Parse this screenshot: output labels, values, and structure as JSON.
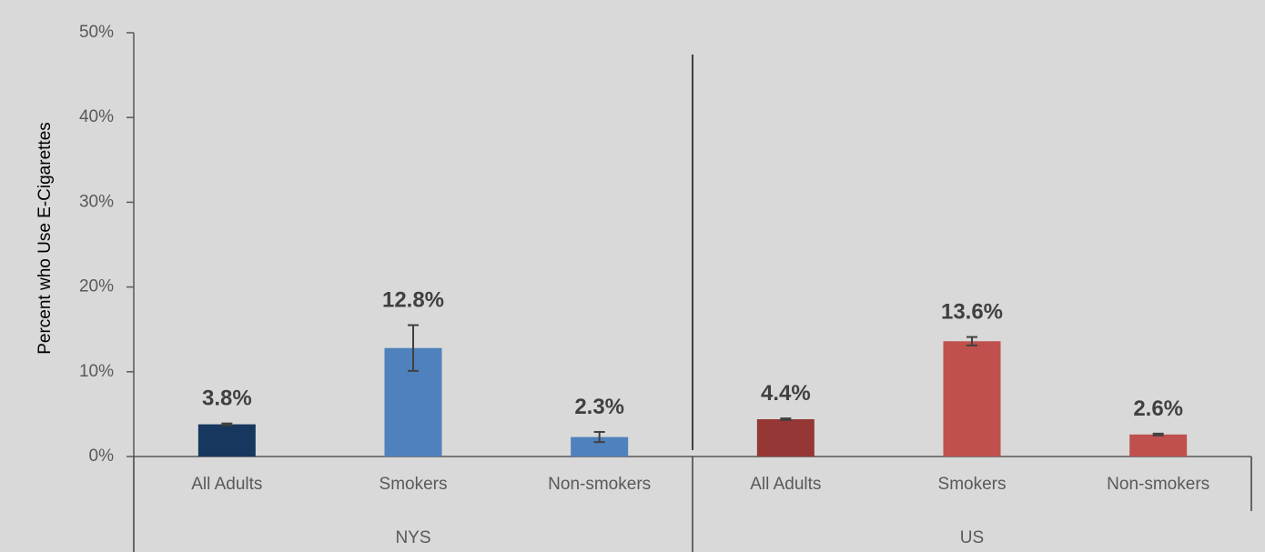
{
  "chart_data": {
    "type": "bar",
    "ylabel": "Percent who Use E-Cigarettes",
    "xlabel": "",
    "title": "",
    "ylim": [
      0,
      50
    ],
    "yticks": [
      "0%",
      "10%",
      "20%",
      "30%",
      "40%",
      "50%"
    ],
    "grid": false,
    "legend": "none",
    "groups": [
      {
        "name": "NYS",
        "bars": [
          {
            "category": "All Adults",
            "value": 3.8,
            "label": "3.8%",
            "err_low": 3.7,
            "err_high": 3.9,
            "color": "#17375e"
          },
          {
            "category": "Smokers",
            "value": 12.8,
            "label": "12.8%",
            "err_low": 10.1,
            "err_high": 15.5,
            "color": "#4f81bd"
          },
          {
            "category": "Non-smokers",
            "value": 2.3,
            "label": "2.3%",
            "err_low": 1.7,
            "err_high": 2.9,
            "color": "#4f81bd"
          }
        ]
      },
      {
        "name": "US",
        "bars": [
          {
            "category": "All Adults",
            "value": 4.4,
            "label": "4.4%",
            "err_low": 4.3,
            "err_high": 4.5,
            "color": "#953735"
          },
          {
            "category": "Smokers",
            "value": 13.6,
            "label": "13.6%",
            "err_low": 13.1,
            "err_high": 14.1,
            "color": "#c0504d"
          },
          {
            "category": "Non-smokers",
            "value": 2.6,
            "label": "2.6%",
            "err_low": 2.5,
            "err_high": 2.7,
            "color": "#c0504d"
          }
        ]
      }
    ]
  }
}
